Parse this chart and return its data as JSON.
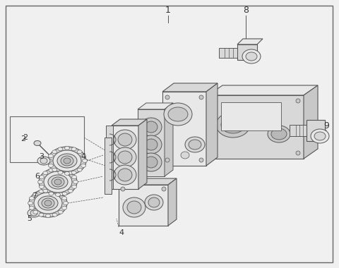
{
  "bg_color": "#f0f0f0",
  "lc": "#555555",
  "fc_light": "#e8e8e8",
  "fc_mid": "#d8d8d8",
  "fc_dark": "#c8c8c8",
  "fc_darker": "#b8b8b8"
}
